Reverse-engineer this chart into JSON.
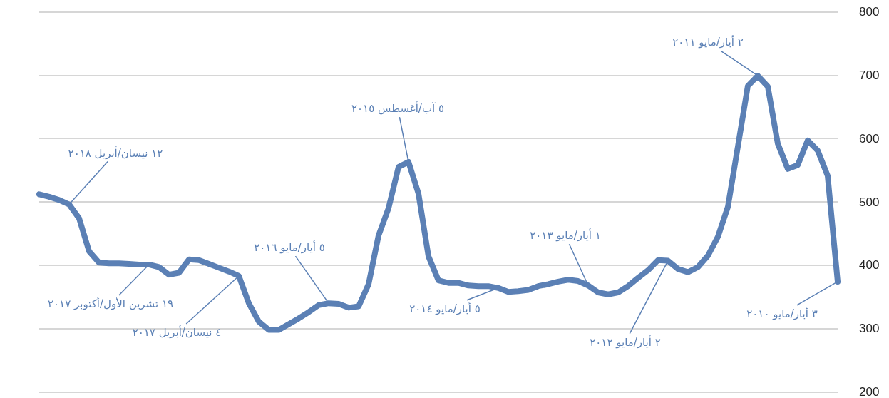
{
  "chart_data": {
    "type": "line",
    "categories": [
      null,
      null,
      null,
      null,
      null,
      null,
      null,
      null,
      null,
      null,
      null,
      null,
      null,
      null,
      null,
      null,
      null,
      null,
      null,
      null,
      null,
      null,
      null,
      null,
      null,
      null,
      null,
      null,
      null,
      null,
      null,
      null,
      null,
      null,
      null,
      null,
      null,
      null,
      null,
      null,
      null,
      null,
      null,
      null,
      null,
      null,
      null,
      null,
      null,
      null,
      null,
      null,
      null,
      null,
      null,
      null,
      null,
      null,
      null,
      null,
      null,
      null,
      null,
      null,
      null,
      null,
      null,
      null,
      null,
      null,
      null,
      null,
      null,
      null,
      null,
      null,
      null,
      null,
      null,
      null,
      null
    ],
    "series": [
      {
        "color": "#5b80b5",
        "values": [
          512,
          508,
          503,
          496,
          474,
          422,
          404,
          403,
          403,
          402,
          401,
          401,
          397,
          385,
          388,
          409,
          408,
          402,
          396,
          390,
          383,
          340,
          311,
          298,
          298,
          307,
          316,
          326,
          337,
          340,
          339,
          333,
          335,
          370,
          447,
          490,
          555,
          563,
          513,
          414,
          376,
          372,
          372,
          368,
          367,
          367,
          364,
          358,
          359,
          361,
          367,
          370,
          374,
          377,
          375,
          368,
          357,
          354,
          357,
          367,
          380,
          392,
          408,
          407,
          394,
          389,
          397,
          415,
          445,
          492,
          587,
          683,
          699,
          682,
          592,
          552,
          558,
          597,
          581,
          541,
          374
        ]
      }
    ],
    "ylim": [
      200,
      800
    ],
    "yticks": [
      200,
      300,
      400,
      500,
      600,
      700,
      800
    ],
    "grid": "y",
    "tick_labels": "y",
    "marker": "none",
    "line_style": "solid",
    "annotations": [
      "٣ أيار/مايو ٢٠١٠",
      "٢ أيار/مايو ٢٠١١",
      "٢ أيار/مايو ٢٠١٢",
      "١ أيار/مايو ٢٠١٣",
      "٥ أيار/مايو ٢٠١٤",
      "٥ آب/أغسطس ٢٠١٥",
      "٥ أيار/مايو ٢٠١٦",
      "٤ نيسان/أبريل ٢٠١٧",
      "١٩ تشرين الأول/أكتوبر ٢٠١٧",
      "١٢ نيسان/أبريل ٢٠١٨"
    ]
  }
}
